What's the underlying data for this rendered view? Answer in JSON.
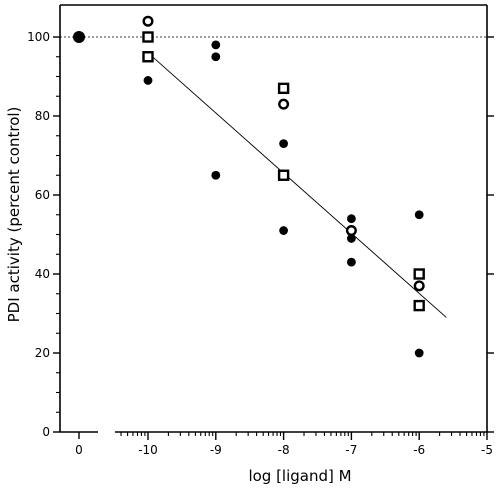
{
  "chart_data": {
    "type": "scatter",
    "title": "",
    "xlabel": "log [ligand] M",
    "ylabel": "PDI activity  (percent control)",
    "xlim": [
      -10.8,
      -5
    ],
    "ylim": [
      0,
      108
    ],
    "x_ticks": [
      -10,
      -9,
      -8,
      -7,
      -6,
      -5
    ],
    "x_tick_labels": [
      "-10",
      "-9",
      "-8",
      "-7",
      "-6",
      "-5"
    ],
    "x_zero_label": "0",
    "y_ticks": [
      0,
      20,
      40,
      60,
      80,
      100
    ],
    "y_tick_labels": [
      "0",
      "20",
      "40",
      "60",
      "80",
      "100"
    ],
    "grid": false,
    "legend": "none",
    "reference_line": {
      "y": 100,
      "style": "dashed"
    },
    "control_point": {
      "x": 0,
      "y": 100,
      "marker": "filled-circle"
    },
    "series": [
      {
        "marker": "filled-circle",
        "points": [
          {
            "x": -10,
            "y": 89
          },
          {
            "x": -9,
            "y": 98
          },
          {
            "x": -9,
            "y": 95
          },
          {
            "x": -9,
            "y": 65
          },
          {
            "x": -8,
            "y": 73
          },
          {
            "x": -8,
            "y": 51
          },
          {
            "x": -7,
            "y": 54
          },
          {
            "x": -7,
            "y": 49
          },
          {
            "x": -7,
            "y": 43
          },
          {
            "x": -6,
            "y": 55
          },
          {
            "x": -6,
            "y": 37
          },
          {
            "x": -6,
            "y": 20
          }
        ]
      },
      {
        "marker": "open-circle",
        "points": [
          {
            "x": -10,
            "y": 104
          },
          {
            "x": -8,
            "y": 83
          },
          {
            "x": -7,
            "y": 51
          },
          {
            "x": -6,
            "y": 37
          }
        ]
      },
      {
        "marker": "open-square",
        "points": [
          {
            "x": -10,
            "y": 100
          },
          {
            "x": -10,
            "y": 95
          },
          {
            "x": -8,
            "y": 87
          },
          {
            "x": -8,
            "y": 65
          },
          {
            "x": -6,
            "y": 40
          },
          {
            "x": -6,
            "y": 32
          }
        ]
      }
    ],
    "fit_line": {
      "x": [
        -10,
        -5.6
      ],
      "y": [
        96,
        29
      ]
    }
  }
}
